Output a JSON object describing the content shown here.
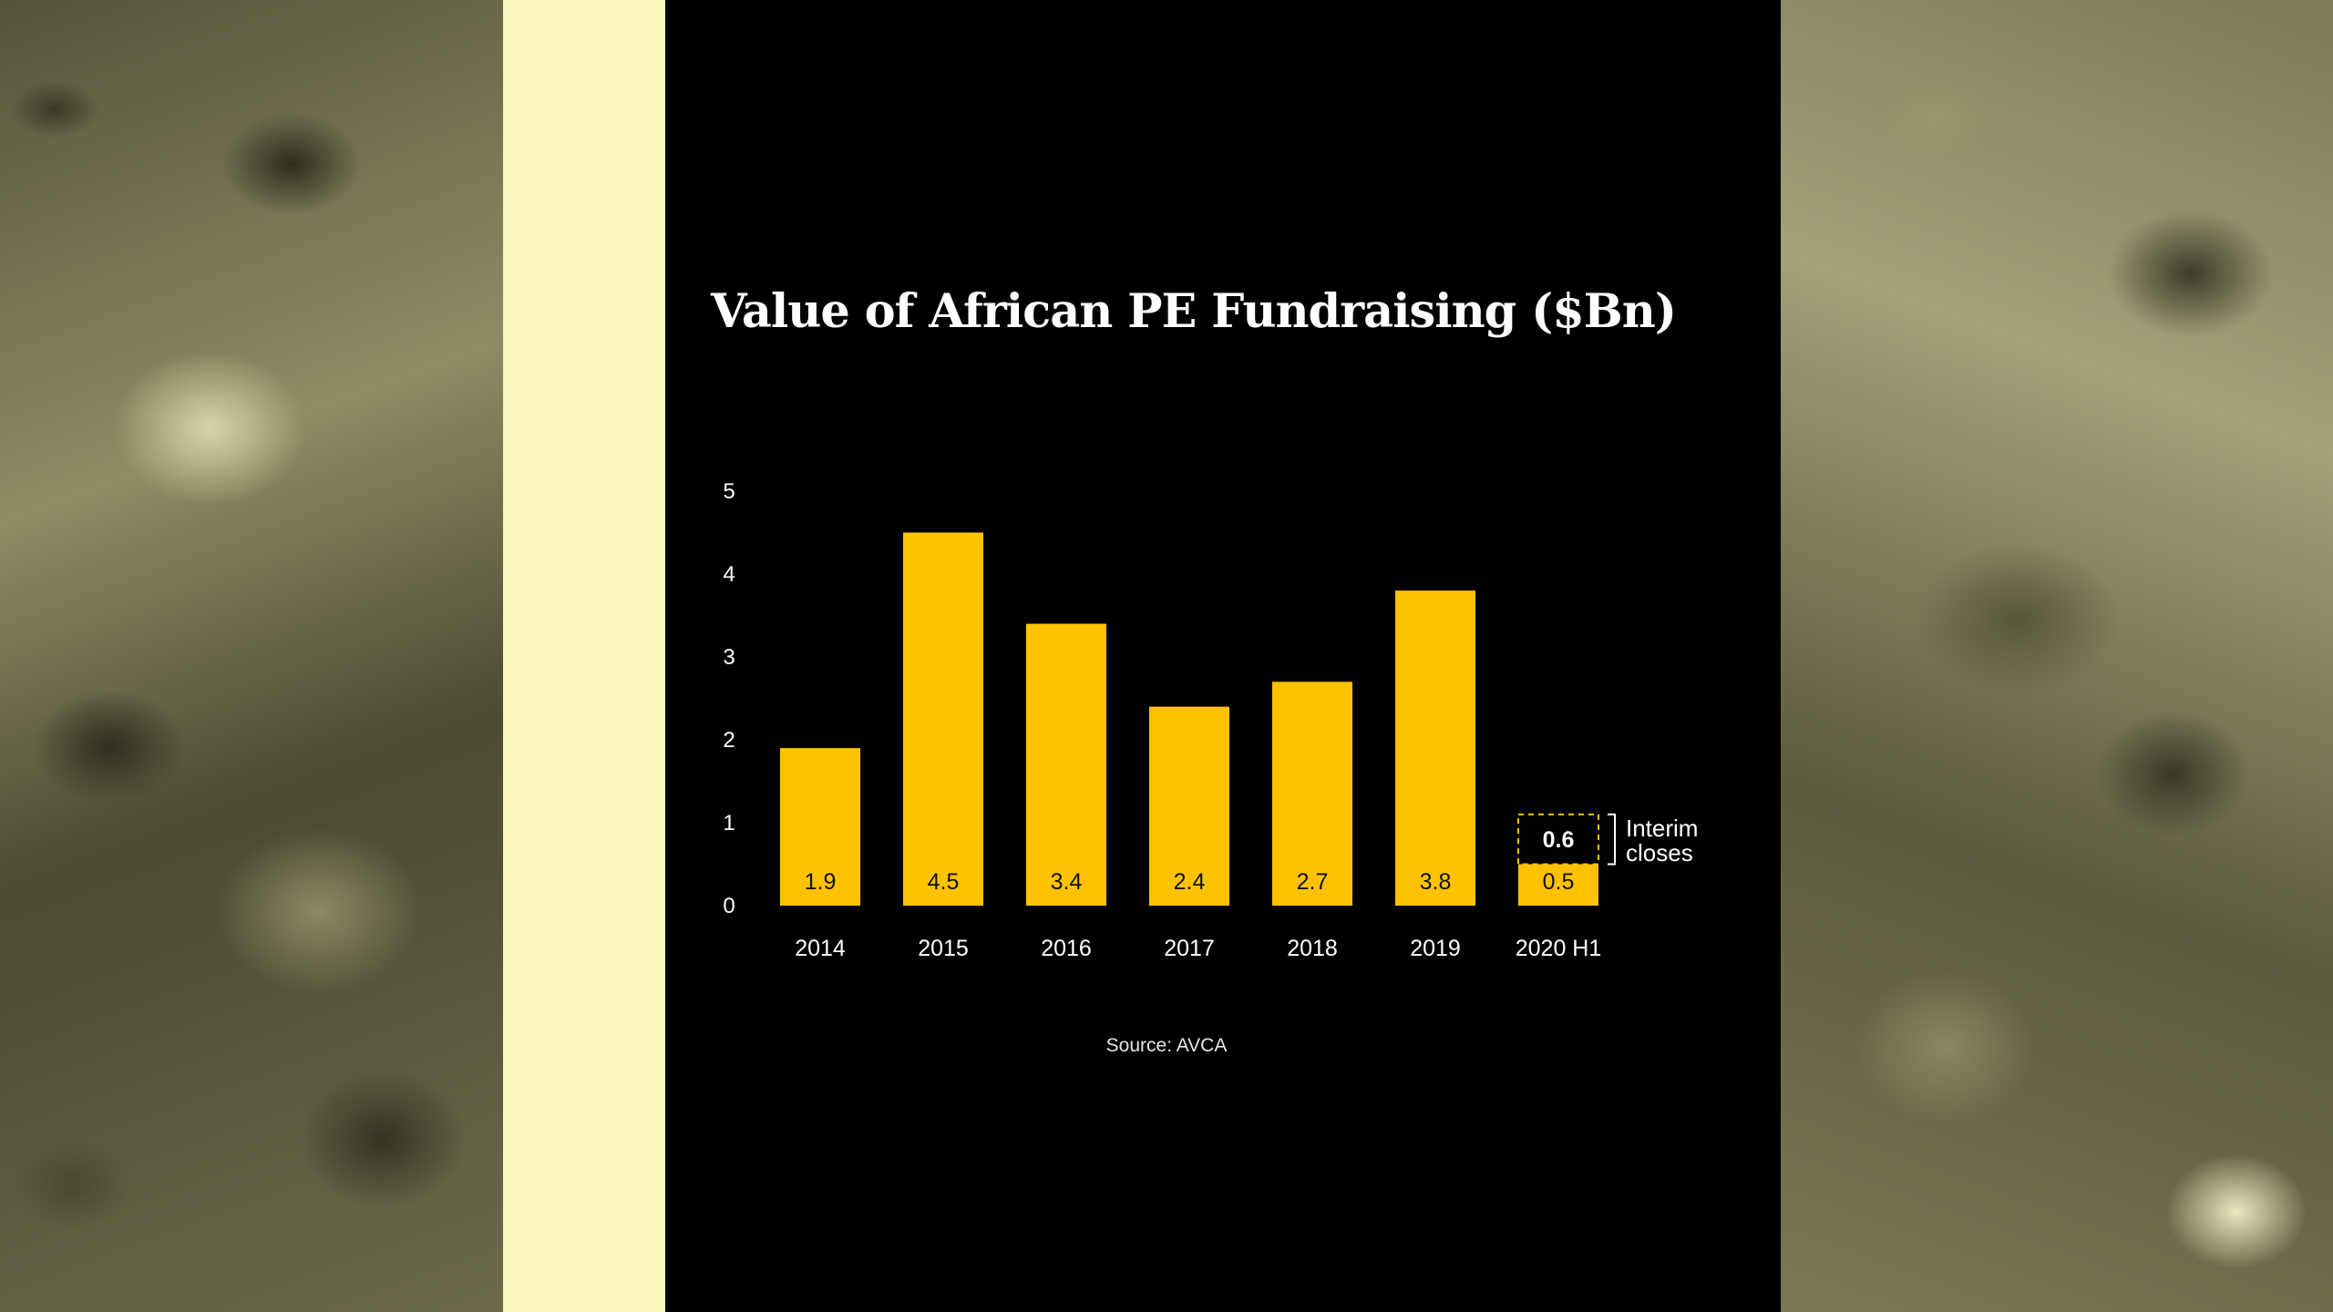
{
  "photos": {
    "left_icon": "aerial-photo-icon",
    "right_icon": "aerial-photo-icon"
  },
  "colors": {
    "background": "#000000",
    "bar": "#fec200",
    "cream": "#f9f5bd",
    "text": "#ffffff"
  },
  "chart_data": {
    "type": "bar",
    "title": "Value of African PE Fundraising ($Bn)",
    "xlabel": "",
    "ylabel": "",
    "ylim": [
      0,
      5
    ],
    "yticks": [
      0,
      1,
      2,
      3,
      4,
      5
    ],
    "categories": [
      "2014",
      "2015",
      "2016",
      "2017",
      "2018",
      "2019",
      "2020 H1"
    ],
    "values": [
      1.9,
      4.5,
      3.4,
      2.4,
      2.7,
      3.8,
      0.5
    ],
    "value_labels": [
      "1.9",
      "4.5",
      "3.4",
      "2.4",
      "2.7",
      "3.8",
      "0.5"
    ],
    "grid": false,
    "interim": {
      "category": "2020 H1",
      "value": 0.6,
      "value_label": "0.6",
      "annotation_lines": [
        "Interim",
        "closes"
      ]
    },
    "source": "Source: AVCA"
  }
}
